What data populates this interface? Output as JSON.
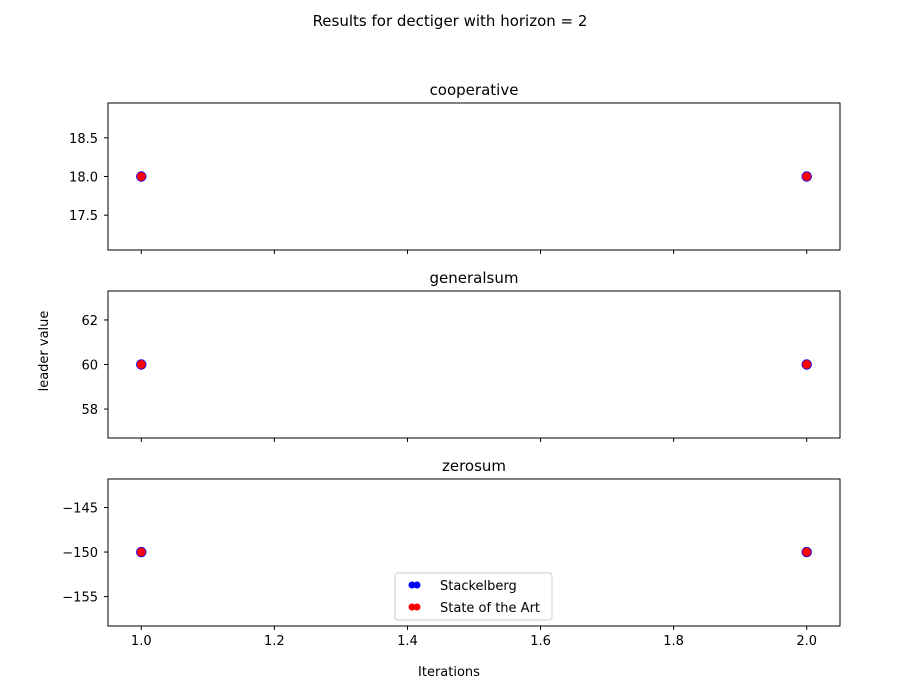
{
  "figure": {
    "suptitle": "Results for dectiger with horizon = 2",
    "xlabel": "Iterations",
    "ylabel": "leader value"
  },
  "legend": {
    "placement": "bottom-center of last panel",
    "entries": [
      {
        "label": "Stackelberg",
        "color": "#0000ff"
      },
      {
        "label": "State of the Art",
        "color": "#ff0000"
      }
    ]
  },
  "chart_data": [
    {
      "type": "scatter",
      "title": "cooperative",
      "xlim": [
        0.95,
        2.05
      ],
      "ylim": [
        17.05,
        18.95
      ],
      "xticks": [
        1.0,
        1.2,
        1.4,
        1.6,
        1.8,
        2.0
      ],
      "xtick_labels_visible": false,
      "yticks": [
        17.5,
        18.0,
        18.5
      ],
      "ytick_labels": [
        "17.5",
        "18.0",
        "18.5"
      ],
      "series": [
        {
          "name": "Stackelberg",
          "color": "#0000ff",
          "points": [
            [
              1.0,
              18.0
            ],
            [
              2.0,
              18.0
            ]
          ]
        },
        {
          "name": "State of the Art",
          "color": "#ff0000",
          "points": [
            [
              1.0,
              18.0
            ],
            [
              2.0,
              18.0
            ]
          ]
        }
      ]
    },
    {
      "type": "scatter",
      "title": "generalsum",
      "xlim": [
        0.95,
        2.05
      ],
      "ylim": [
        56.7,
        63.3
      ],
      "xticks": [
        1.0,
        1.2,
        1.4,
        1.6,
        1.8,
        2.0
      ],
      "xtick_labels_visible": false,
      "yticks": [
        58,
        60,
        62
      ],
      "ytick_labels": [
        "58",
        "60",
        "62"
      ],
      "series": [
        {
          "name": "Stackelberg",
          "color": "#0000ff",
          "points": [
            [
              1.0,
              60.0
            ],
            [
              2.0,
              60.0
            ]
          ]
        },
        {
          "name": "State of the Art",
          "color": "#ff0000",
          "points": [
            [
              1.0,
              60.0
            ],
            [
              2.0,
              60.0
            ]
          ]
        }
      ]
    },
    {
      "type": "scatter",
      "title": "zerosum",
      "xlim": [
        0.95,
        2.05
      ],
      "ylim": [
        -158.3,
        -141.8
      ],
      "xticks": [
        1.0,
        1.2,
        1.4,
        1.6,
        1.8,
        2.0
      ],
      "xtick_labels_visible": true,
      "xtick_labels": [
        "1.0",
        "1.2",
        "1.4",
        "1.6",
        "1.8",
        "2.0"
      ],
      "yticks": [
        -155,
        -150,
        -145
      ],
      "ytick_labels": [
        "−155",
        "−150",
        "−145"
      ],
      "series": [
        {
          "name": "Stackelberg",
          "color": "#0000ff",
          "points": [
            [
              1.0,
              -150.0
            ],
            [
              2.0,
              -150.0
            ]
          ]
        },
        {
          "name": "State of the Art",
          "color": "#ff0000",
          "points": [
            [
              1.0,
              -150.0
            ],
            [
              2.0,
              -150.0
            ]
          ]
        }
      ]
    }
  ]
}
